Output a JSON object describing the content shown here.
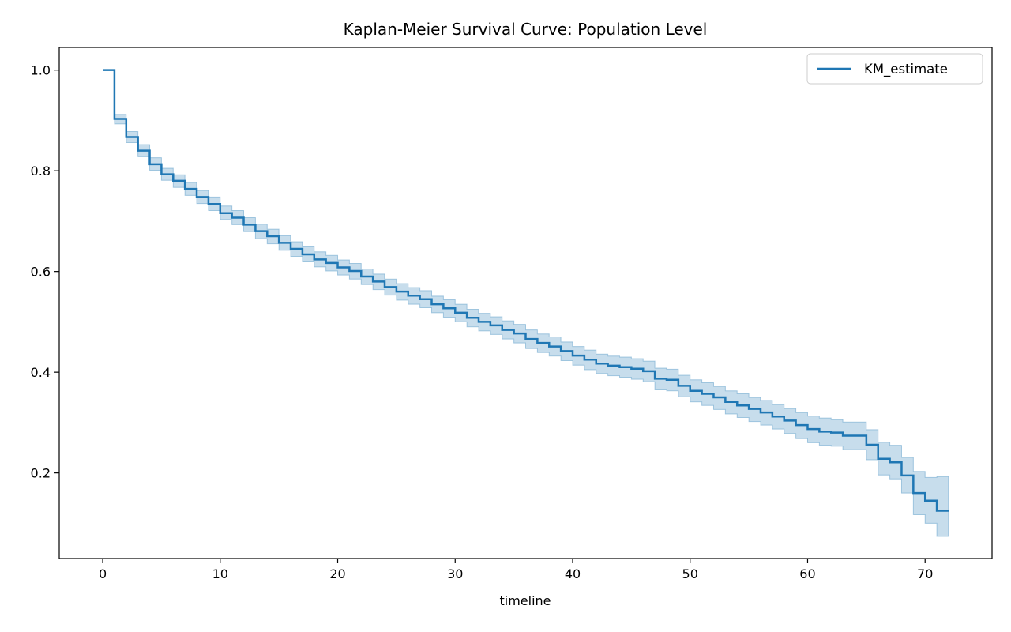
{
  "chart_data": {
    "type": "line",
    "title": "Kaplan-Meier Survival Curve: Population Level",
    "xlabel": "timeline",
    "ylabel": "",
    "xlim": [
      -3.7,
      75.7
    ],
    "ylim": [
      0.03,
      1.045
    ],
    "xticks": [
      0,
      10,
      20,
      30,
      40,
      50,
      60,
      70
    ],
    "yticks": [
      0.2,
      0.4,
      0.6,
      0.8,
      1.0
    ],
    "xtick_labels": [
      "0",
      "10",
      "20",
      "30",
      "40",
      "50",
      "60",
      "70"
    ],
    "ytick_labels": [
      "0.2",
      "0.4",
      "0.6",
      "0.8",
      "1.0"
    ],
    "grid": false,
    "legend_position": "top-right",
    "series": [
      {
        "name": "KM_estimate",
        "color": "#1f77b4",
        "ci_color": "#1f77b4",
        "step": "post",
        "x": [
          0,
          1,
          2,
          3,
          4,
          5,
          6,
          7,
          8,
          9,
          10,
          11,
          12,
          13,
          14,
          15,
          16,
          17,
          18,
          19,
          20,
          21,
          22,
          23,
          24,
          25,
          26,
          27,
          28,
          29,
          30,
          31,
          32,
          33,
          34,
          35,
          36,
          37,
          38,
          39,
          40,
          41,
          42,
          43,
          44,
          45,
          46,
          47,
          48,
          49,
          50,
          51,
          52,
          53,
          54,
          55,
          56,
          57,
          58,
          59,
          60,
          61,
          62,
          63,
          64,
          65,
          66,
          67,
          68,
          69,
          70,
          71,
          72
        ],
        "y": [
          1.0,
          0.903,
          0.867,
          0.84,
          0.813,
          0.793,
          0.78,
          0.764,
          0.748,
          0.734,
          0.716,
          0.707,
          0.693,
          0.68,
          0.67,
          0.657,
          0.645,
          0.634,
          0.624,
          0.617,
          0.608,
          0.601,
          0.59,
          0.58,
          0.569,
          0.56,
          0.552,
          0.545,
          0.535,
          0.527,
          0.518,
          0.508,
          0.5,
          0.493,
          0.484,
          0.477,
          0.466,
          0.458,
          0.451,
          0.442,
          0.433,
          0.425,
          0.417,
          0.413,
          0.41,
          0.407,
          0.402,
          0.387,
          0.385,
          0.373,
          0.363,
          0.357,
          0.35,
          0.341,
          0.334,
          0.327,
          0.32,
          0.312,
          0.304,
          0.295,
          0.287,
          0.282,
          0.28,
          0.274,
          0.274,
          0.256,
          0.228,
          0.221,
          0.195,
          0.16,
          0.145,
          0.125,
          0.125
        ],
        "ci_lower": [
          1.0,
          0.893,
          0.856,
          0.828,
          0.801,
          0.781,
          0.767,
          0.751,
          0.735,
          0.721,
          0.703,
          0.693,
          0.679,
          0.665,
          0.655,
          0.642,
          0.63,
          0.619,
          0.609,
          0.601,
          0.593,
          0.585,
          0.574,
          0.564,
          0.553,
          0.543,
          0.535,
          0.528,
          0.518,
          0.509,
          0.5,
          0.49,
          0.482,
          0.475,
          0.466,
          0.458,
          0.447,
          0.439,
          0.432,
          0.423,
          0.414,
          0.405,
          0.397,
          0.393,
          0.39,
          0.386,
          0.381,
          0.365,
          0.363,
          0.351,
          0.341,
          0.334,
          0.326,
          0.317,
          0.31,
          0.302,
          0.295,
          0.287,
          0.278,
          0.268,
          0.26,
          0.255,
          0.253,
          0.246,
          0.246,
          0.226,
          0.196,
          0.188,
          0.16,
          0.117,
          0.1,
          0.074,
          0.074
        ],
        "ci_upper": [
          1.0,
          0.912,
          0.878,
          0.852,
          0.826,
          0.805,
          0.792,
          0.777,
          0.761,
          0.748,
          0.73,
          0.721,
          0.707,
          0.694,
          0.684,
          0.671,
          0.659,
          0.649,
          0.639,
          0.632,
          0.623,
          0.616,
          0.605,
          0.595,
          0.585,
          0.576,
          0.568,
          0.562,
          0.551,
          0.544,
          0.535,
          0.525,
          0.517,
          0.51,
          0.502,
          0.495,
          0.484,
          0.476,
          0.47,
          0.46,
          0.451,
          0.444,
          0.436,
          0.432,
          0.43,
          0.427,
          0.422,
          0.408,
          0.406,
          0.394,
          0.385,
          0.379,
          0.372,
          0.363,
          0.357,
          0.35,
          0.344,
          0.336,
          0.328,
          0.32,
          0.313,
          0.309,
          0.306,
          0.301,
          0.301,
          0.286,
          0.261,
          0.255,
          0.231,
          0.203,
          0.191,
          0.193,
          0.193
        ]
      }
    ]
  }
}
